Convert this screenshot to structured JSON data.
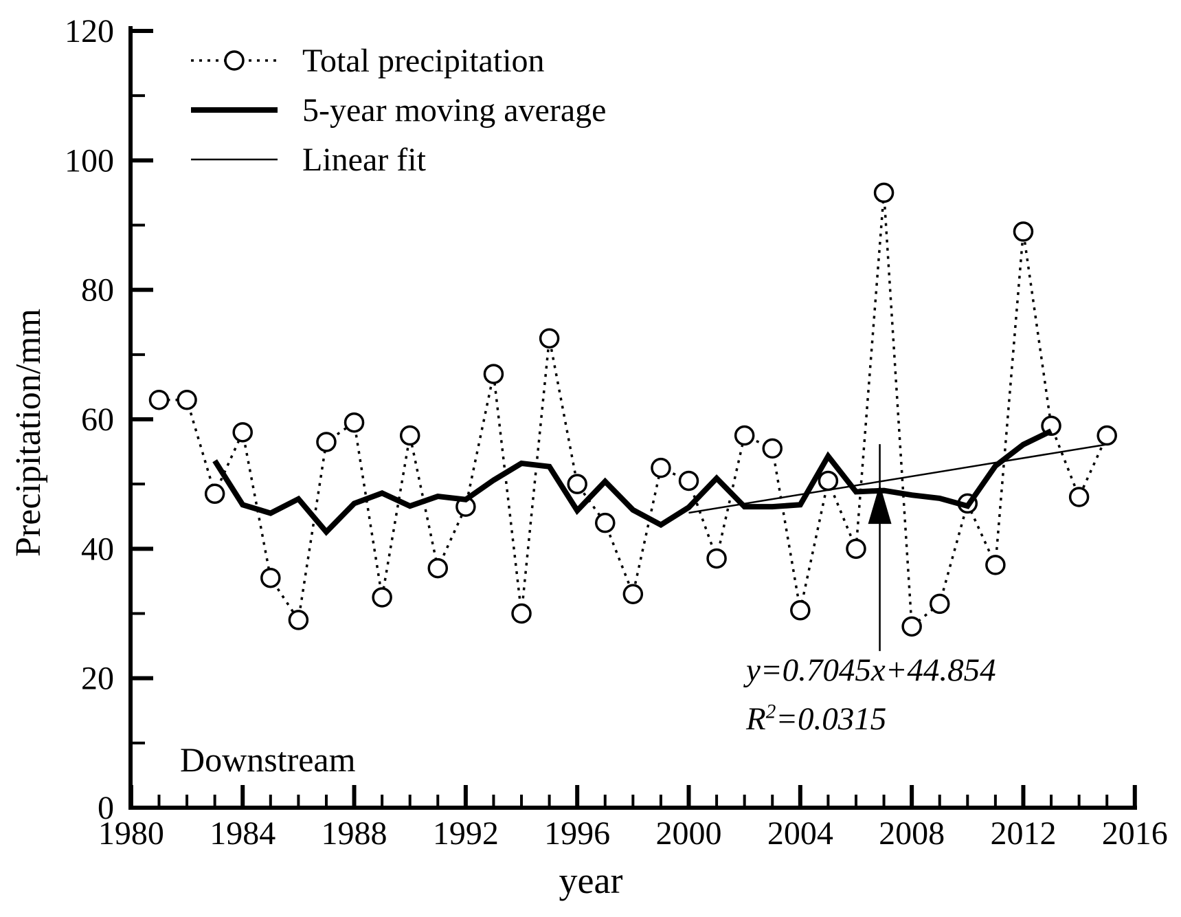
{
  "chart_data": {
    "type": "line",
    "title": "",
    "xlabel": "year",
    "ylabel": "Precipitation/mm",
    "region_label": "Downstream",
    "xlim": [
      1980,
      2016
    ],
    "ylim": [
      0,
      120
    ],
    "x_major_ticks": [
      1980,
      1984,
      1988,
      1992,
      1996,
      2000,
      2004,
      2008,
      2012,
      2016
    ],
    "x_minor_step_years": 1,
    "y_major_ticks": [
      0,
      20,
      40,
      60,
      80,
      100,
      120
    ],
    "y_minor_step": 10,
    "grid": false,
    "legend_position": "top-left-inside",
    "x": [
      1981,
      1982,
      1983,
      1984,
      1985,
      1986,
      1987,
      1988,
      1989,
      1990,
      1991,
      1992,
      1993,
      1994,
      1995,
      1996,
      1997,
      1998,
      1999,
      2000,
      2001,
      2002,
      2003,
      2004,
      2005,
      2006,
      2007,
      2008,
      2009,
      2010,
      2011,
      2012,
      2013,
      2014,
      2015
    ],
    "series": [
      {
        "name": "Total precipitation",
        "style": "dotted-open-circle",
        "values": [
          63,
          63,
          48.5,
          58,
          35.5,
          29,
          56.5,
          59.5,
          32.5,
          57.5,
          37,
          46.5,
          67,
          30,
          72.5,
          50,
          44,
          33,
          52.5,
          50.5,
          38.5,
          57.5,
          55.5,
          30.5,
          50.5,
          40,
          95,
          28,
          31.5,
          47,
          37.5,
          89,
          59,
          48,
          57.5
        ]
      },
      {
        "name": "5-year moving average",
        "style": "thick-solid",
        "x_start": 1983,
        "values": [
          53.6,
          46.8,
          45.5,
          47.7,
          42.6,
          47.0,
          48.6,
          46.6,
          48.1,
          47.6,
          50.6,
          53.2,
          52.7,
          45.9,
          50.4,
          46.0,
          43.7,
          46.4,
          50.9,
          46.5,
          46.5,
          46.8,
          54.3,
          48.8,
          49.0,
          48.3,
          47.8,
          46.6,
          52.8,
          56.1,
          58.2
        ]
      },
      {
        "name": "Linear fit",
        "style": "thin-solid",
        "slope": 0.7045,
        "intercept": 44.854,
        "x_origin_year": 1999,
        "draw_from_year": 2000,
        "draw_to_year": 2015
      }
    ]
  },
  "annotation": {
    "equation": "y=0.7045x+44.854",
    "r2_base": "R",
    "r2_sup": "2",
    "r2_value": "=0.0315",
    "arrow_points_to_year": 2007,
    "arrow_tip_value": 50,
    "arrow_tail_value": 24.2
  },
  "colors": {
    "ink": "#000000",
    "background": "#ffffff"
  }
}
